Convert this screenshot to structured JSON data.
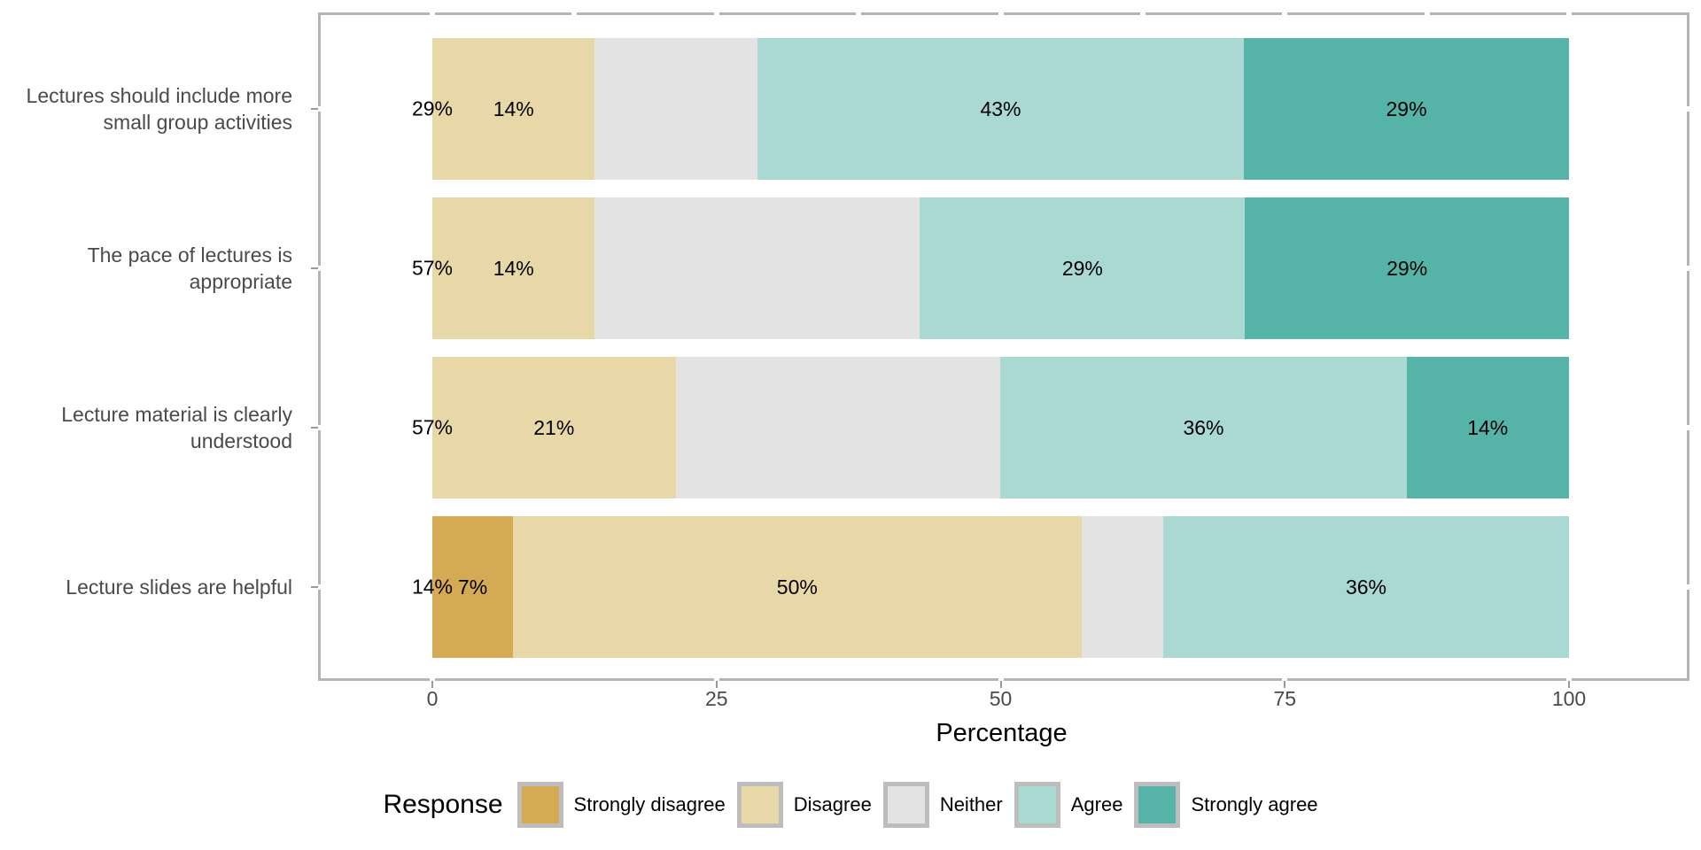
{
  "chart_data": {
    "type": "bar",
    "orientation": "horizontal",
    "stacked": true,
    "xlabel": "Percentage",
    "x_ticks": [
      "0",
      "25",
      "50",
      "75",
      "100"
    ],
    "x_range": [
      0,
      100
    ],
    "grid": false,
    "legend_title": "Response",
    "legend_position": "bottom",
    "levels": [
      {
        "name": "Strongly disagree",
        "color": "#d4aa54"
      },
      {
        "name": "Disagree",
        "color": "#e9d8a7"
      },
      {
        "name": "Neither",
        "color": "#e3e3e3"
      },
      {
        "name": "Agree",
        "color": "#aad8d2"
      },
      {
        "name": "Strongly agree",
        "color": "#55b3a8"
      }
    ],
    "rows": [
      {
        "category": "Lectures should include more small group activities",
        "category_lines": [
          "Lectures should include more",
          "small group activities"
        ],
        "left_label": "29%",
        "segments": [
          {
            "level": "Disagree",
            "pct": 14.3,
            "label": "14%"
          },
          {
            "level": "Neither",
            "pct": 14.3,
            "label": ""
          },
          {
            "level": "Agree",
            "pct": 42.8,
            "label": "43%"
          },
          {
            "level": "Strongly agree",
            "pct": 28.6,
            "label": "29%"
          }
        ]
      },
      {
        "category": "The pace of lectures is appropriate",
        "category_lines": [
          "The pace of lectures is",
          "appropriate"
        ],
        "left_label": "57%",
        "segments": [
          {
            "level": "Disagree",
            "pct": 14.3,
            "label": "14%"
          },
          {
            "level": "Neither",
            "pct": 28.6,
            "label": ""
          },
          {
            "level": "Agree",
            "pct": 28.6,
            "label": "29%"
          },
          {
            "level": "Strongly agree",
            "pct": 28.5,
            "label": "29%"
          }
        ]
      },
      {
        "category": "Lecture material is clearly understood",
        "category_lines": [
          "Lecture material is clearly",
          "understood"
        ],
        "left_label": "57%",
        "segments": [
          {
            "level": "Disagree",
            "pct": 21.4,
            "label": "21%"
          },
          {
            "level": "Neither",
            "pct": 28.6,
            "label": ""
          },
          {
            "level": "Agree",
            "pct": 35.7,
            "label": "36%"
          },
          {
            "level": "Strongly agree",
            "pct": 14.3,
            "label": "14%"
          }
        ]
      },
      {
        "category": "Lecture slides are helpful",
        "category_lines": [
          "Lecture slides are helpful"
        ],
        "left_label": "14%",
        "segments": [
          {
            "level": "Strongly disagree",
            "pct": 7.1,
            "label": "7%"
          },
          {
            "level": "Disagree",
            "pct": 50.0,
            "label": "50%"
          },
          {
            "level": "Neither",
            "pct": 7.2,
            "label": ""
          },
          {
            "level": "Agree",
            "pct": 35.7,
            "label": "36%"
          }
        ]
      }
    ],
    "panel_border_color": "#b4b4b4",
    "axis_text_color": "#4a4a4a",
    "label_text_color": "#000000"
  }
}
